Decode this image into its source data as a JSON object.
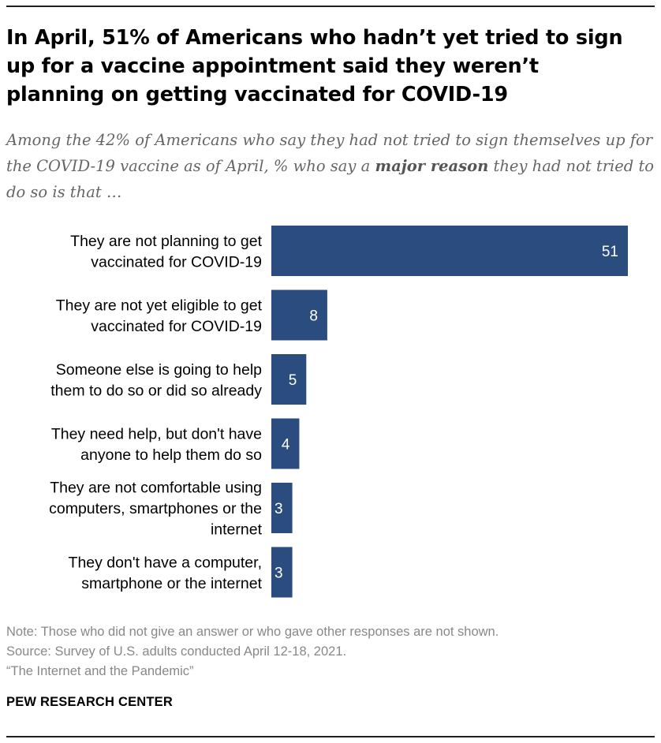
{
  "header": {
    "title": "In April, 51% of Americans who hadn’t yet tried to sign up for a vaccine appointment said they weren’t planning on getting vaccinated for COVID-19",
    "subtitle_before": "Among the 42% of Americans who say they had not tried to sign themselves up for the COVID-19 vaccine as of April, % who say a ",
    "subtitle_emphasis": "major reason",
    "subtitle_after": " they had not tried to do so is that …"
  },
  "chart_data": {
    "type": "bar",
    "orientation": "horizontal",
    "categories": [
      [
        "They are not planning to get",
        "vaccinated for COVID-19"
      ],
      [
        "They are not yet eligible to get",
        "vaccinated for COVID-19"
      ],
      [
        "Someone else is going to help",
        "them to do so or did so already"
      ],
      [
        "They need help, but don't have",
        "anyone to help them do so"
      ],
      [
        "They are not comfortable using",
        "computers, smartphones or the",
        "internet"
      ],
      [
        "They don't have a computer,",
        "smartphone or the internet"
      ]
    ],
    "values": [
      51,
      8,
      5,
      4,
      3,
      3
    ],
    "data_labels": [
      "51",
      "8",
      "5",
      "4",
      "3",
      "3"
    ],
    "xlim": [
      0,
      51
    ],
    "bar_color": "#2b4c7e",
    "label_color": "#ffffff",
    "grid": false
  },
  "footer": {
    "note": "Note: Those who did not give an answer or who gave other responses are not shown.",
    "source": "Source: Survey of U.S. adults conducted April 12-18, 2021.",
    "report": "“The Internet and the Pandemic”",
    "brand": "PEW RESEARCH CENTER"
  }
}
